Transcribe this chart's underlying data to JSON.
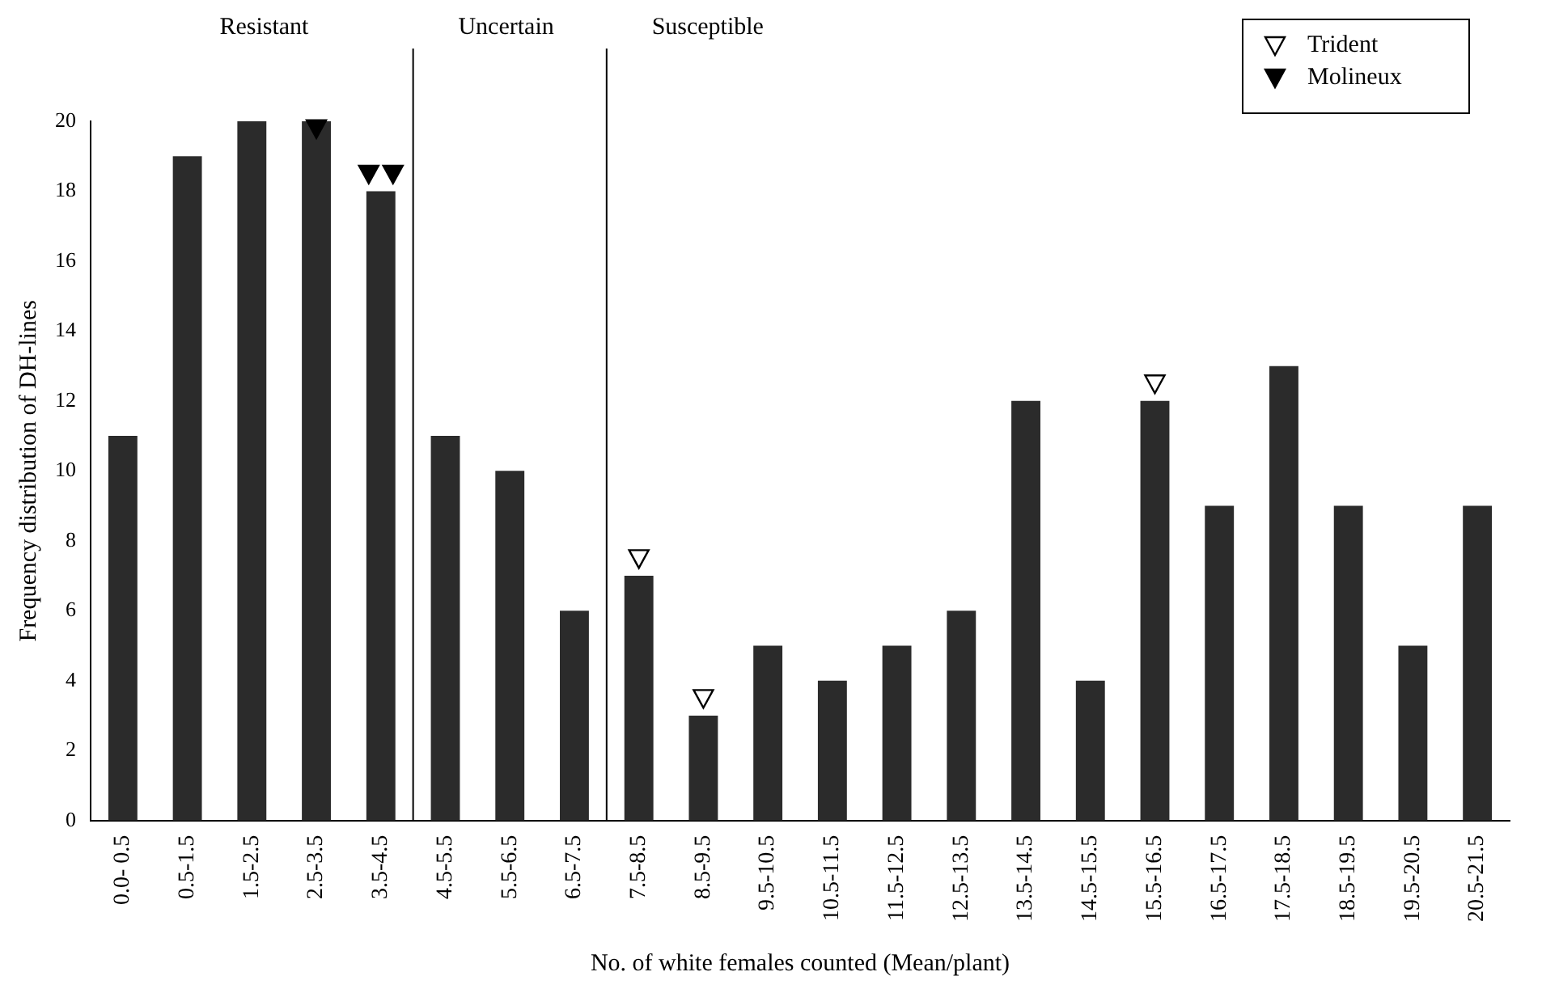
{
  "chart_data": {
    "type": "bar",
    "xlabel": "No. of white females counted (Mean/plant)",
    "ylabel": "Frequency distribution of DH-lines",
    "categories": [
      "0.0- 0.5",
      "0.5-1.5",
      "1.5-2.5",
      "2.5-3.5",
      "3.5-4.5",
      "4.5-5.5",
      "5.5-6.5",
      "6.5-7.5",
      "7.5-8.5",
      "8.5-9.5",
      "9.5-10.5",
      "10.5-11.5",
      "11.5-12.5",
      "12.5-13.5",
      "13.5-14.5",
      "14.5-15.5",
      "15.5-16.5",
      "16.5-17.5",
      "17.5-18.5",
      "18.5-19.5",
      "19.5-20.5",
      "20.5-21.5"
    ],
    "series": [
      {
        "color": "#2b2b2b",
        "values": [
          11,
          19,
          20,
          20,
          18,
          11,
          10,
          6,
          7,
          3,
          5,
          4,
          5,
          6,
          12,
          4,
          12,
          9,
          13,
          9,
          5,
          9
        ]
      },
      {
        "type": "scatter",
        "name": "Trident",
        "color": "#000000",
        "x": [
          "7.5-8.5",
          "8.5-9.5",
          "15.5-16.5"
        ],
        "values": [
          7.5,
          3.5,
          12.5
        ]
      },
      {
        "type": "scatter",
        "name": "Molineux",
        "color": "#000000",
        "x": [
          "2.5-3.5",
          "3.5-4.5",
          "3.5-4.5"
        ],
        "values": [
          19.8,
          18.5,
          18.5
        ]
      }
    ],
    "annotations": [
      "Resistant",
      "Uncertain",
      "Susceptible"
    ],
    "ylim": [
      0,
      20
    ],
    "yticks": [
      0,
      2,
      4,
      6,
      8,
      10,
      12,
      14,
      16,
      18,
      20
    ],
    "grid": false,
    "legend": "top right"
  }
}
